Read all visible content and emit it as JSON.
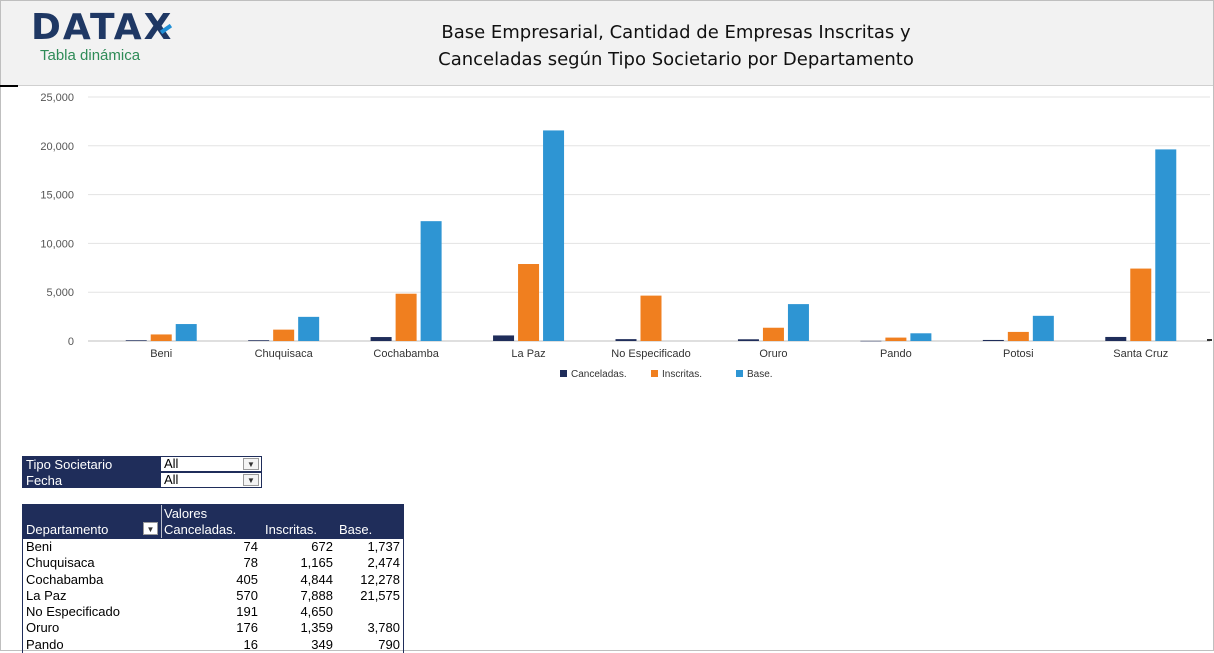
{
  "header": {
    "logo_text": "DATAX",
    "subtitle": "Tabla dinámica",
    "title_line1": "Base Empresarial, Cantidad de Empresas Inscritas y",
    "title_line2": "Canceladas según Tipo Societario por Departamento"
  },
  "colors": {
    "canceladas": "#1f2d5a",
    "inscritas": "#f07f1f",
    "base": "#2e95d3",
    "header_bg": "#1f2d5a"
  },
  "chart_data": {
    "type": "bar",
    "categories": [
      "Beni",
      "Chuquisaca",
      "Cochabamba",
      "La Paz",
      "No Especificado",
      "Oruro",
      "Pando",
      "Potosi",
      "Santa Cruz"
    ],
    "series": [
      {
        "name": "Canceladas.",
        "values": [
          74,
          78,
          405,
          570,
          191,
          176,
          16,
          107,
          415
        ]
      },
      {
        "name": "Inscritas.",
        "values": [
          672,
          1165,
          4844,
          7888,
          4650,
          1359,
          349,
          931,
          7421
        ]
      },
      {
        "name": "Base.",
        "values": [
          1737,
          2474,
          12278,
          21575,
          null,
          3780,
          790,
          2579,
          19631
        ]
      }
    ],
    "ylim": [
      0,
      25000
    ],
    "yticks": [
      "0",
      "5,000",
      "10,000",
      "15,000",
      "20,000",
      "25,000"
    ],
    "ytick_values": [
      0,
      5000,
      10000,
      15000,
      20000,
      25000
    ],
    "grid": true,
    "legend": "bottom"
  },
  "slicers": [
    {
      "label": "Tipo Societario",
      "value": "All",
      "icon": "dropdown-arrow-icon"
    },
    {
      "label": "Fecha",
      "value": "All",
      "icon": "dropdown-arrow-icon"
    }
  ],
  "pivot": {
    "valores_label": "Valores",
    "row_header": "Departamento",
    "columns": [
      "Canceladas.",
      "Inscritas.",
      "Base."
    ],
    "rows": [
      {
        "name": "Beni",
        "c1": "74",
        "c2": "672",
        "c3": "1,737"
      },
      {
        "name": "Chuquisaca",
        "c1": "78",
        "c2": "1,165",
        "c3": "2,474"
      },
      {
        "name": "Cochabamba",
        "c1": "405",
        "c2": "4,844",
        "c3": "12,278"
      },
      {
        "name": "La Paz",
        "c1": "570",
        "c2": "7,888",
        "c3": "21,575"
      },
      {
        "name": "No Especificado",
        "c1": "191",
        "c2": "4,650",
        "c3": ""
      },
      {
        "name": "Oruro",
        "c1": "176",
        "c2": "1,359",
        "c3": "3,780"
      },
      {
        "name": "Pando",
        "c1": "16",
        "c2": "349",
        "c3": "790"
      }
    ]
  }
}
